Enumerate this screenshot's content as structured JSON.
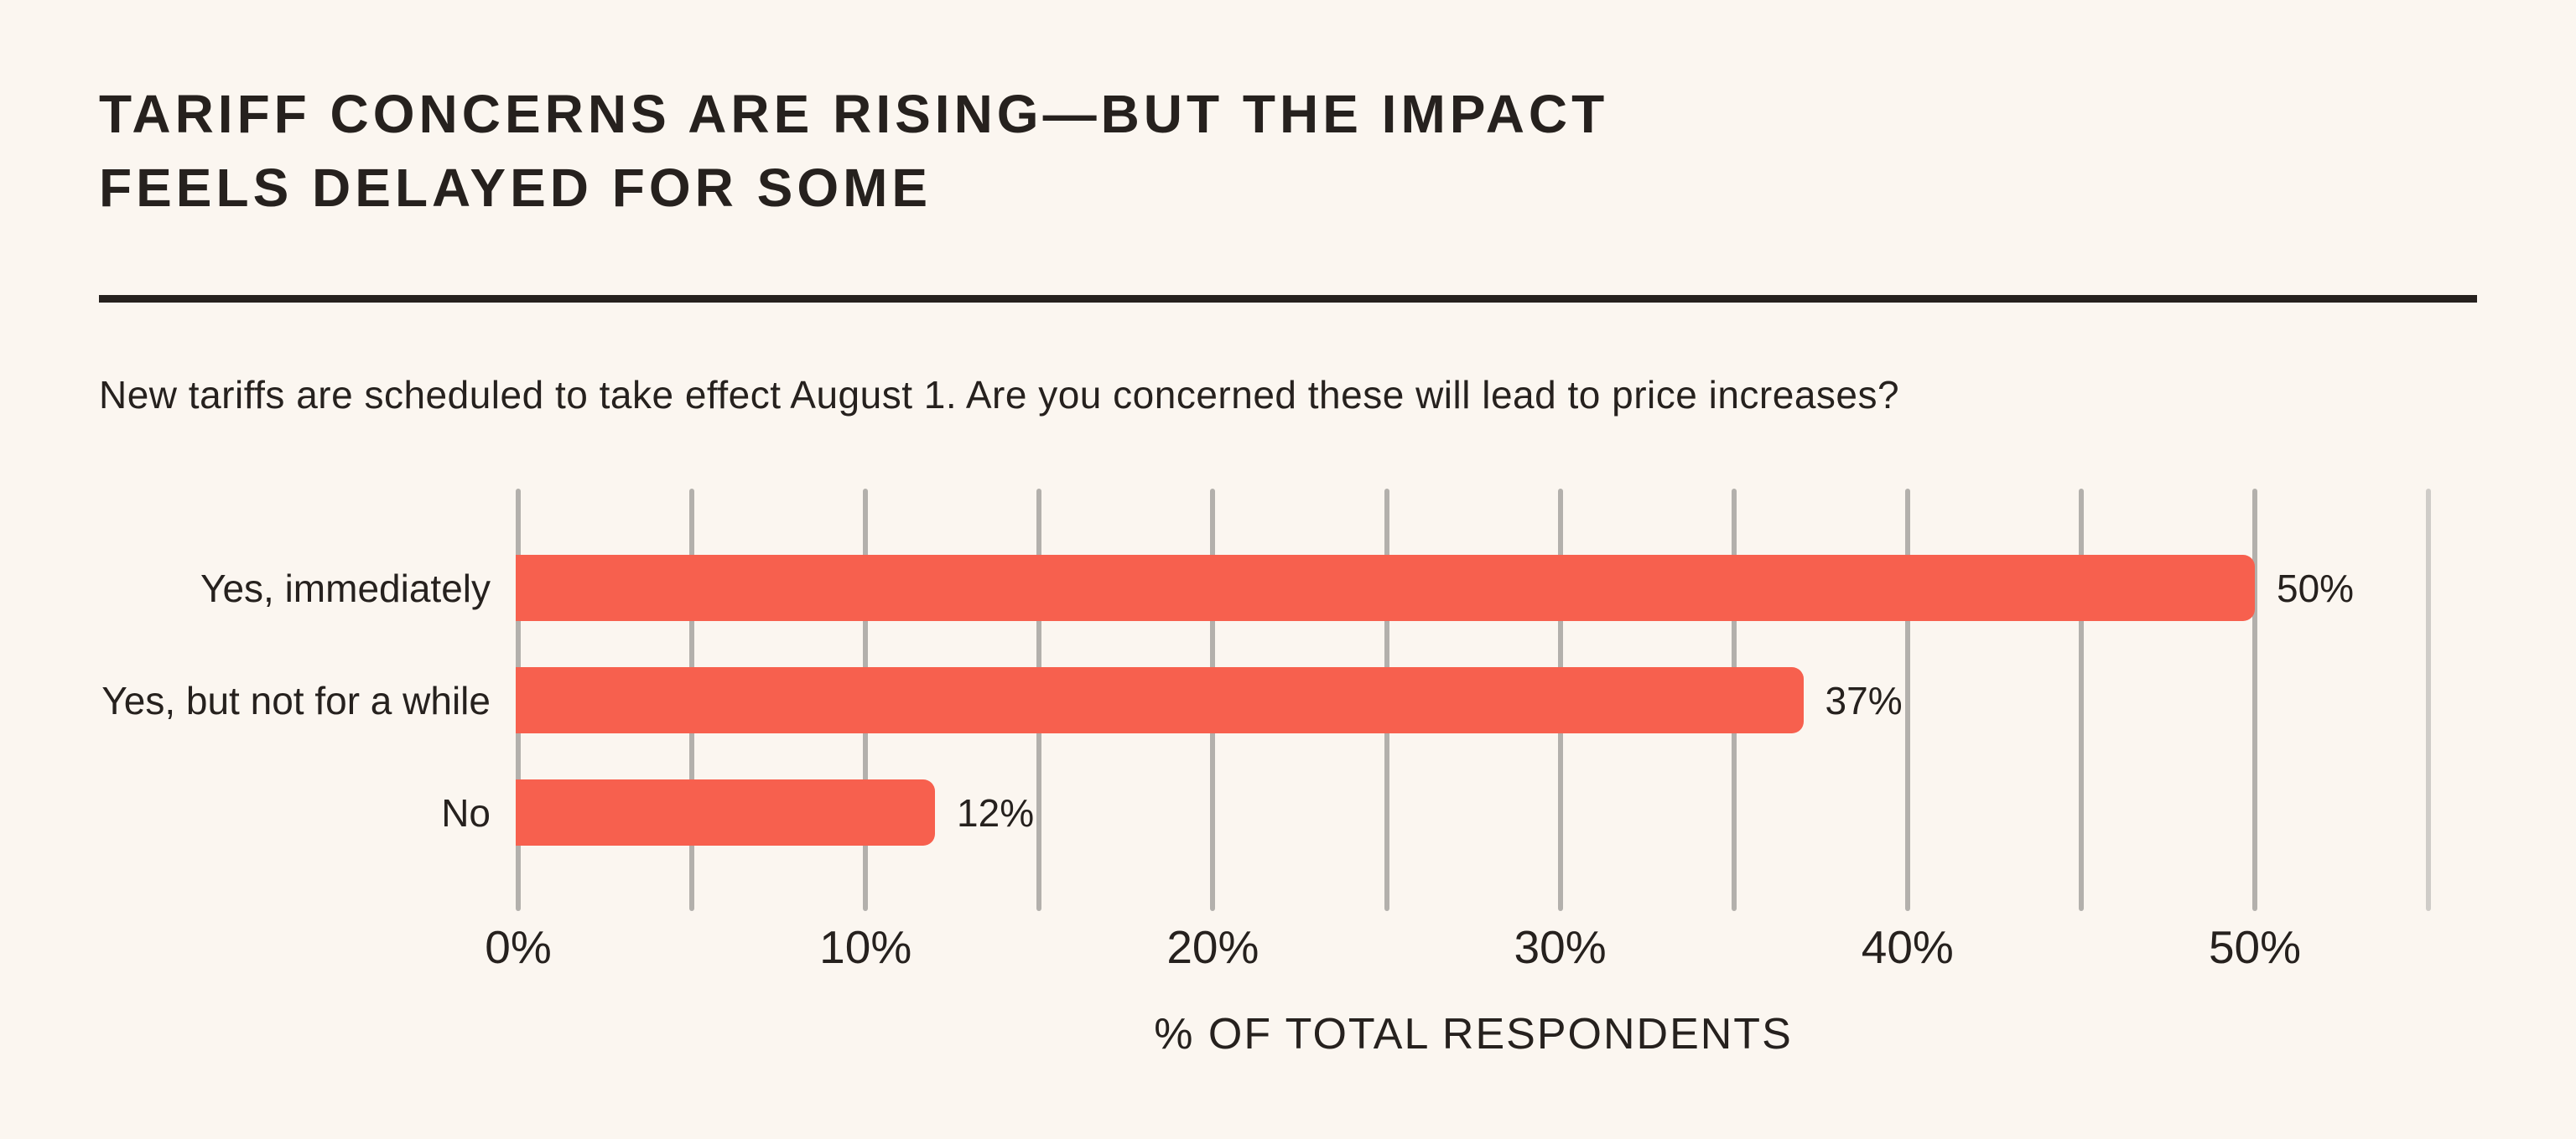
{
  "page": {
    "background_color": "#FBF6F0",
    "title": "TARIFF CONCERNS ARE RISING—BUT THE IMPACT\nFEELS DELAYED FOR SOME",
    "subtitle": "New tariffs are scheduled to take effect August 1. Are you concerned these will lead to price increases?"
  },
  "chart_data": {
    "type": "bar",
    "orientation": "horizontal",
    "title": "TARIFF CONCERNS ARE RISING—BUT THE IMPACT FEELS DELAYED FOR SOME",
    "subtitle": "New tariffs are scheduled to take effect August 1. Are you concerned these will lead to price increases?",
    "categories": [
      "Yes, immediately",
      "Yes, but not for a while",
      "No"
    ],
    "values": [
      50,
      37,
      12
    ],
    "value_labels": [
      "50%",
      "37%",
      "12%"
    ],
    "xlabel": "% OF TOTAL RESPONDENTS",
    "ylabel": "",
    "x_ticks": [
      0,
      10,
      20,
      30,
      40,
      50
    ],
    "x_tick_labels": [
      "0%",
      "10%",
      "20%",
      "30%",
      "40%",
      "50%"
    ],
    "xlim": [
      0,
      55
    ],
    "gridline_step_pct": 5,
    "grid": true,
    "legend": "none",
    "colors": {
      "bar": "#F7604E",
      "gridline": "#B3B0AC",
      "gridline_last": "#CFCCC8",
      "text": "#26211E",
      "background": "#FBF6F0",
      "divider": "#26211E"
    }
  }
}
